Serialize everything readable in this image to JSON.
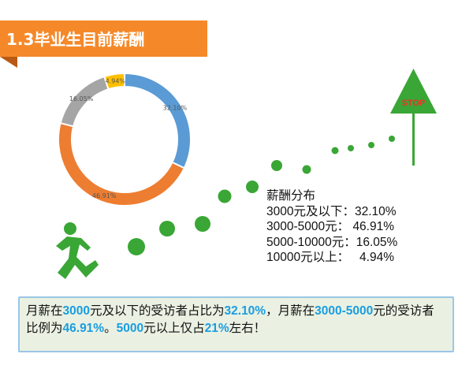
{
  "header": {
    "title": "1.3毕业生目前薪酬"
  },
  "chart_data": {
    "type": "pie",
    "categories": [
      "3000元及以下",
      "3000-5000元",
      "5000-10000元",
      "10000元以上"
    ],
    "values": [
      32.1,
      46.91,
      16.05,
      4.94
    ],
    "data_labels": [
      "32.10%",
      "46.91%",
      "16.05%",
      "4.94%"
    ],
    "colors": [
      "#5b9bd5",
      "#ed7d31",
      "#a5a5a5",
      "#ffc000"
    ],
    "donut": true
  },
  "stop_sign": {
    "label": "STOP"
  },
  "salary_list": {
    "title": "薪酬分布",
    "rows": [
      {
        "label": "3000元及以下：",
        "value": "32.10%"
      },
      {
        "label": "3000-5000元：",
        "value": "46.91%"
      },
      {
        "label": "5000-10000元：",
        "value": "16.05%"
      },
      {
        "label": "10000元以上：",
        "value": "4.94%"
      }
    ]
  },
  "summary": {
    "p1": "月薪在",
    "h1": "3000",
    "p2": "元及以下的受访者占比为",
    "h2": "32.10%",
    "p3": "，月薪在",
    "h3": "3000-5000",
    "p4": "元的受访者比例为",
    "h4": "46.91%",
    "p5": "。",
    "h5": "5000",
    "p6": "元以上仅占",
    "h6": "21%",
    "p7": "左右！"
  },
  "colors": {
    "banner": "#f5892a",
    "figure_green": "#3aa635",
    "highlight": "#1a9de0",
    "summary_bg": "#eaf1e3"
  }
}
